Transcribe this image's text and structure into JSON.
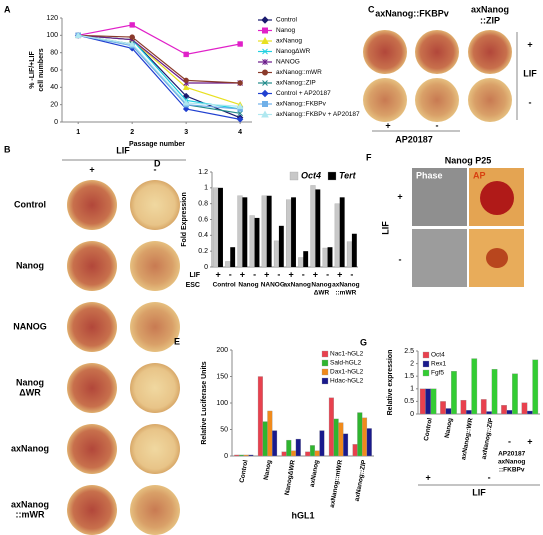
{
  "panels": {
    "B": {
      "label": "B",
      "lif": "LIF",
      "plus": "+",
      "minus": "-",
      "rows": [
        [
          "Control"
        ],
        [
          "Nanog"
        ],
        [
          "NANOG"
        ],
        [
          "Nanog",
          "ΔWR"
        ],
        [
          "axNanog"
        ],
        [
          "axNanog",
          "::mWR"
        ]
      ]
    },
    "C": {
      "label": "C",
      "col1": "axNanog::FKBPv",
      "col2": [
        "axNanog",
        "::ZIP"
      ],
      "lif": "LIF",
      "plus": "+",
      "minus": "-",
      "ap": "AP20187"
    },
    "F": {
      "label": "F",
      "title": "Nanog P25",
      "phase": "Phase",
      "ap": "AP",
      "lif": "LIF",
      "plus": "+",
      "minus": "-"
    }
  },
  "chart_data": [
    {
      "type": "line",
      "label": "A",
      "ylabel": [
        "% -LIF/+LIF",
        "cell numbers"
      ],
      "xlabel": "Passage number",
      "x": [
        1,
        2,
        3,
        4
      ],
      "xlim": [
        0.7,
        4.22
      ],
      "xticks": [
        1,
        2,
        3,
        4
      ],
      "ylim": [
        0,
        120
      ],
      "yticks": [
        0,
        20,
        40,
        60,
        80,
        100,
        120
      ],
      "series": [
        {
          "name": "Control",
          "color": "#1a1a6e",
          "marker": "diamond",
          "values": [
            100,
            95,
            30,
            5
          ]
        },
        {
          "name": "Nanog",
          "color": "#e020c8",
          "marker": "square",
          "values": [
            100,
            112,
            78,
            90
          ]
        },
        {
          "name": "axNanog",
          "color": "#e8e020",
          "marker": "triangle",
          "values": [
            100,
            95,
            40,
            20
          ]
        },
        {
          "name": "NanogΔWR",
          "color": "#20d0e0",
          "marker": "x",
          "values": [
            100,
            95,
            25,
            15
          ]
        },
        {
          "name": "NANOG",
          "color": "#6a1a8a",
          "marker": "star",
          "values": [
            100,
            95,
            45,
            45
          ]
        },
        {
          "name": "axNanog::mWR",
          "color": "#8a3a2a",
          "marker": "circle",
          "values": [
            100,
            98,
            48,
            45
          ]
        },
        {
          "name": "axNanog::ZIP",
          "color": "#208a8a",
          "marker": "x",
          "values": [
            100,
            90,
            20,
            10
          ]
        },
        {
          "name": "Control + AP20187",
          "color": "#2040d0",
          "marker": "diamond",
          "values": [
            100,
            85,
            15,
            3
          ]
        },
        {
          "name": "axNanog::FKBPv",
          "color": "#70b0e8",
          "marker": "square",
          "values": [
            100,
            88,
            20,
            15
          ]
        },
        {
          "name": "axNanog::FKBPv + AP20187",
          "color": "#b0e8f0",
          "marker": "triangle",
          "values": [
            100,
            90,
            22,
            18
          ]
        }
      ]
    },
    {
      "type": "bar",
      "label": "D",
      "ylabel": "Fold Expression",
      "category_title": "LIF",
      "categories": [
        "+",
        "-",
        "+",
        "-",
        "+",
        "-",
        "+",
        "-",
        "+",
        "-",
        "+",
        "-"
      ],
      "group_title": "ESC",
      "groups": [
        [
          "Control"
        ],
        [
          "Nanog"
        ],
        [
          "NANOG"
        ],
        [
          "axNanog"
        ],
        [
          "Nanog",
          "ΔWR"
        ],
        [
          "axNanog",
          "::mWR"
        ]
      ],
      "ylim": [
        0,
        1.2
      ],
      "yticks": [
        0,
        0.2,
        0.4,
        0.6,
        0.8,
        1,
        1.2
      ],
      "legend": "upper right",
      "legend_ncol": 2,
      "series": [
        {
          "name": "Oct4",
          "color": "#c8c8c8",
          "values": [
            1,
            0.07,
            0.9,
            0.65,
            0.9,
            0.33,
            0.85,
            0.12,
            1.03,
            0.24,
            0.8,
            0.32
          ]
        },
        {
          "name": "Tert",
          "color": "#000000",
          "values": [
            1,
            0.25,
            0.88,
            0.62,
            0.9,
            0.52,
            0.88,
            0.2,
            0.98,
            0.25,
            0.88,
            0.42
          ]
        }
      ]
    },
    {
      "type": "bar",
      "label": "E",
      "ylabel": "Relative Luciferase Units",
      "xlabel": "hGL1",
      "categories": [
        "Control",
        "Nanog",
        "NanogΔWR",
        "axNanog",
        "axNanog::mWR",
        "axNanog::ZIP"
      ],
      "ylim": [
        0,
        200
      ],
      "yticks": [
        0,
        50,
        100,
        150,
        200
      ],
      "legend": "upper right",
      "series": [
        {
          "name": "Nac1-hGL2",
          "color": "#e8414e",
          "values": [
            2,
            150,
            8,
            8,
            110,
            22
          ]
        },
        {
          "name": "Sald-hGL2",
          "color": "#2fb52f",
          "values": [
            2,
            65,
            30,
            20,
            70,
            82
          ]
        },
        {
          "name": "Dax1-hGL2",
          "color": "#f08a1c",
          "values": [
            2,
            85,
            10,
            10,
            63,
            72
          ]
        },
        {
          "name": "Hdac-hGL2",
          "color": "#1a1a8c",
          "values": [
            2,
            48,
            32,
            48,
            42,
            52
          ]
        }
      ]
    },
    {
      "type": "bar",
      "label": "G",
      "ylabel": "Relative expression",
      "categories": [
        "Control",
        "Nanog",
        "axNanog::WR",
        "axNanog::ZIP",
        "-",
        "+"
      ],
      "group_label": [
        "AP20187",
        "axNanog",
        "::FKBPv"
      ],
      "lif_title": "LIF",
      "lif_marks": [
        "+",
        "-"
      ],
      "ylim": [
        0,
        2.5
      ],
      "yticks": [
        0,
        0.5,
        1,
        1.5,
        2,
        2.5
      ],
      "legend": "upper left",
      "series": [
        {
          "name": "Oct4",
          "color": "#e8414e",
          "values": [
            1,
            0.5,
            0.55,
            0.58,
            0.35,
            0.45
          ]
        },
        {
          "name": "Rex1",
          "color": "#1a1a8c",
          "values": [
            1,
            0.22,
            0.15,
            0.1,
            0.15,
            0.12
          ]
        },
        {
          "name": "Fgf5",
          "color": "#33cc33",
          "values": [
            1,
            1.7,
            2.2,
            1.78,
            1.6,
            2.15
          ]
        }
      ]
    }
  ]
}
